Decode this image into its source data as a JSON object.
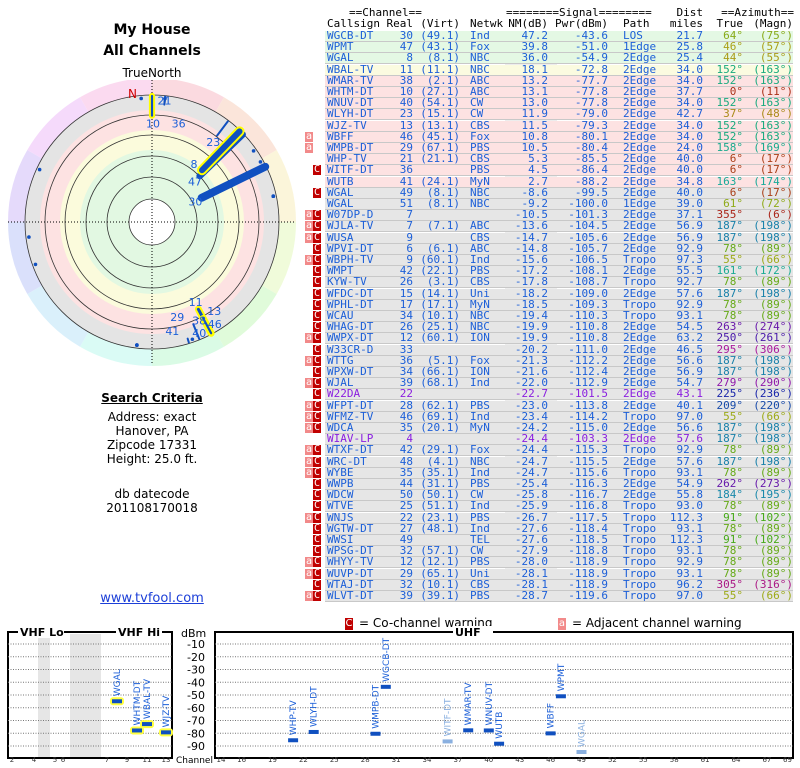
{
  "header": {
    "title1": "My House",
    "title2": "All Channels",
    "north_label": "TrueNorth",
    "north_marker": "N"
  },
  "search": {
    "heading": "Search Criteria",
    "address": "Address: exact",
    "city": "Hanover, PA",
    "zip": "Zipcode 17331",
    "height": "Height: 25.0 ft.",
    "db_label": "db datecode",
    "db_value": "201108170018",
    "link": "www.tvfool.com"
  },
  "table": {
    "group_headers": {
      "channel": "==Channel==",
      "signal": "========Signal========",
      "dist": "Dist",
      "azimuth": "==Azimuth=="
    },
    "columns": [
      "Callsign",
      "Real",
      "(Virt)",
      "Netwk",
      "NM(dB)",
      "Pwr(dBm)",
      "Path",
      "miles",
      "True",
      "(Magn)"
    ],
    "rows": [
      {
        "call": "WGCB-DT",
        "real": "30",
        "virt": "(49.1)",
        "net": "Ind",
        "nm": "47.2",
        "pwr": "-43.6",
        "path": "LOS",
        "dist": "21.7",
        "az": 64,
        "true": "64°",
        "magn": "(75°)",
        "flags": "",
        "band": "green"
      },
      {
        "call": "WPMT",
        "real": "47",
        "virt": "(43.1)",
        "net": "Fox",
        "nm": "39.8",
        "pwr": "-51.0",
        "path": "1Edge",
        "dist": "25.8",
        "az": 46,
        "true": "46°",
        "magn": "(57°)",
        "flags": "",
        "band": "green"
      },
      {
        "call": "WGAL",
        "real": "8",
        "virt": "(8.1)",
        "net": "NBC",
        "nm": "36.0",
        "pwr": "-54.9",
        "path": "2Edge",
        "dist": "25.4",
        "az": 44,
        "true": "44°",
        "magn": "(55°)",
        "flags": "",
        "band": "green"
      },
      {
        "call": "WBAL-TV",
        "real": "11",
        "virt": "(11.1)",
        "net": "NBC",
        "nm": "18.1",
        "pwr": "-72.8",
        "path": "2Edge",
        "dist": "34.0",
        "az": 152,
        "true": "152°",
        "magn": "(163°)",
        "flags": "",
        "band": "yellow"
      },
      {
        "call": "WMAR-TV",
        "real": "38",
        "virt": "(2.1)",
        "net": "ABC",
        "nm": "13.2",
        "pwr": "-77.7",
        "path": "2Edge",
        "dist": "34.0",
        "az": 152,
        "true": "152°",
        "magn": "(163°)",
        "flags": "",
        "band": "pink"
      },
      {
        "call": "WHTM-DT",
        "real": "10",
        "virt": "(27.1)",
        "net": "ABC",
        "nm": "13.1",
        "pwr": "-77.8",
        "path": "2Edge",
        "dist": "37.7",
        "az": 0,
        "true": "0°",
        "magn": "(11°)",
        "flags": "",
        "band": "pink"
      },
      {
        "call": "WNUV-DT",
        "real": "40",
        "virt": "(54.1)",
        "net": "CW",
        "nm": "13.0",
        "pwr": "-77.8",
        "path": "2Edge",
        "dist": "34.0",
        "az": 152,
        "true": "152°",
        "magn": "(163°)",
        "flags": "",
        "band": "pink"
      },
      {
        "call": "WLYH-DT",
        "real": "23",
        "virt": "(15.1)",
        "net": "CW",
        "nm": "11.9",
        "pwr": "-79.0",
        "path": "2Edge",
        "dist": "42.7",
        "az": 37,
        "true": "37°",
        "magn": "(48°)",
        "flags": "",
        "band": "pink"
      },
      {
        "call": "WJZ-TV",
        "real": "13",
        "virt": "(13.1)",
        "net": "CBS",
        "nm": "11.5",
        "pwr": "-79.3",
        "path": "2Edge",
        "dist": "34.0",
        "az": 152,
        "true": "152°",
        "magn": "(163°)",
        "flags": "",
        "band": "pink"
      },
      {
        "call": "WBFF",
        "real": "46",
        "virt": "(45.1)",
        "net": "Fox",
        "nm": "10.8",
        "pwr": "-80.1",
        "path": "2Edge",
        "dist": "34.0",
        "az": 152,
        "true": "152°",
        "magn": "(163°)",
        "flags": "a",
        "band": "pink"
      },
      {
        "call": "WMPB-DT",
        "real": "29",
        "virt": "(67.1)",
        "net": "PBS",
        "nm": "10.5",
        "pwr": "-80.4",
        "path": "2Edge",
        "dist": "24.0",
        "az": 158,
        "true": "158°",
        "magn": "(169°)",
        "flags": "a",
        "band": "pink"
      },
      {
        "call": "WHP-TV",
        "real": "21",
        "virt": "(21.1)",
        "net": "CBS",
        "nm": "5.3",
        "pwr": "-85.5",
        "path": "2Edge",
        "dist": "40.0",
        "az": 6,
        "true": "6°",
        "magn": "(17°)",
        "flags": "",
        "band": "pink"
      },
      {
        "call": "WITF-DT",
        "real": "36",
        "virt": "",
        "net": "PBS",
        "nm": "4.5",
        "pwr": "-86.4",
        "path": "2Edge",
        "dist": "40.0",
        "az": 6,
        "true": "6°",
        "magn": "(17°)",
        "flags": "C",
        "band": "pink"
      },
      {
        "call": "WUTB",
        "real": "41",
        "virt": "(24.1)",
        "net": "MyN",
        "nm": "2.7",
        "pwr": "-88.2",
        "path": "2Edge",
        "dist": "34.8",
        "az": 163,
        "true": "163°",
        "magn": "(174°)",
        "flags": "",
        "band": "pink"
      },
      {
        "call": "WGAL",
        "real": "49",
        "virt": "(8.1)",
        "net": "NBC",
        "nm": "-8.6",
        "pwr": "-99.5",
        "path": "2Edge",
        "dist": "40.0",
        "az": 6,
        "true": "6°",
        "magn": "(17°)",
        "flags": "C",
        "band": "gray"
      },
      {
        "call": "WGAL",
        "real": "51",
        "virt": "(8.1)",
        "net": "NBC",
        "nm": "-9.2",
        "pwr": "-100.0",
        "path": "1Edge",
        "dist": "39.0",
        "az": 61,
        "true": "61°",
        "magn": "(72°)",
        "flags": "",
        "band": "gray"
      },
      {
        "call": "W07DP-D",
        "real": "7",
        "virt": "",
        "net": "",
        "nm": "-10.5",
        "pwr": "-101.3",
        "path": "2Edge",
        "dist": "37.1",
        "az": 355,
        "true": "355°",
        "magn": "(6°)",
        "flags": "aC",
        "band": "gray"
      },
      {
        "call": "WJLA-TV",
        "real": "7",
        "virt": "(7.1)",
        "net": "ABC",
        "nm": "-13.6",
        "pwr": "-104.5",
        "path": "2Edge",
        "dist": "56.9",
        "az": 187,
        "true": "187°",
        "magn": "(198°)",
        "flags": "aC",
        "band": "gray"
      },
      {
        "call": "WUSA",
        "real": "9",
        "virt": "",
        "net": "CBS",
        "nm": "-14.7",
        "pwr": "-105.6",
        "path": "2Edge",
        "dist": "56.9",
        "az": 187,
        "true": "187°",
        "magn": "(198°)",
        "flags": "aC",
        "band": "gray"
      },
      {
        "call": "WPVI-DT",
        "real": "6",
        "virt": "(6.1)",
        "net": "ABC",
        "nm": "-14.8",
        "pwr": "-105.7",
        "path": "2Edge",
        "dist": "92.9",
        "az": 78,
        "true": "78°",
        "magn": "(89°)",
        "flags": "C",
        "band": "gray"
      },
      {
        "call": "WBPH-TV",
        "real": "9",
        "virt": "(60.1)",
        "net": "Ind",
        "nm": "-15.6",
        "pwr": "-106.5",
        "path": "Tropo",
        "dist": "97.3",
        "az": 55,
        "true": "55°",
        "magn": "(66°)",
        "flags": "aC",
        "band": "gray"
      },
      {
        "call": "WMPT",
        "real": "42",
        "virt": "(22.1)",
        "net": "PBS",
        "nm": "-17.2",
        "pwr": "-108.1",
        "path": "2Edge",
        "dist": "55.5",
        "az": 161,
        "true": "161°",
        "magn": "(172°)",
        "flags": "C",
        "band": "gray"
      },
      {
        "call": "KYW-TV",
        "real": "26",
        "virt": "(3.1)",
        "net": "CBS",
        "nm": "-17.8",
        "pwr": "-108.7",
        "path": "Tropo",
        "dist": "92.7",
        "az": 78,
        "true": "78°",
        "magn": "(89°)",
        "flags": "C",
        "band": "gray"
      },
      {
        "call": "WFDC-DT",
        "real": "15",
        "virt": "(14.1)",
        "net": "Uni",
        "nm": "-18.2",
        "pwr": "-109.0",
        "path": "2Edge",
        "dist": "57.6",
        "az": 187,
        "true": "187°",
        "magn": "(198°)",
        "flags": "C",
        "band": "gray"
      },
      {
        "call": "WPHL-DT",
        "real": "17",
        "virt": "(17.1)",
        "net": "MyN",
        "nm": "-18.5",
        "pwr": "-109.3",
        "path": "Tropo",
        "dist": "92.9",
        "az": 78,
        "true": "78°",
        "magn": "(89°)",
        "flags": "C",
        "band": "gray"
      },
      {
        "call": "WCAU",
        "real": "34",
        "virt": "(10.1)",
        "net": "NBC",
        "nm": "-19.4",
        "pwr": "-110.3",
        "path": "Tropo",
        "dist": "93.1",
        "az": 78,
        "true": "78°",
        "magn": "(89°)",
        "flags": "C",
        "band": "gray"
      },
      {
        "call": "WHAG-DT",
        "real": "26",
        "virt": "(25.1)",
        "net": "NBC",
        "nm": "-19.9",
        "pwr": "-110.8",
        "path": "2Edge",
        "dist": "54.5",
        "az": 263,
        "true": "263°",
        "magn": "(274°)",
        "flags": "C",
        "band": "gray"
      },
      {
        "call": "WWPX-DT",
        "real": "12",
        "virt": "(60.1)",
        "net": "ION",
        "nm": "-19.9",
        "pwr": "-110.8",
        "path": "2Edge",
        "dist": "63.2",
        "az": 250,
        "true": "250°",
        "magn": "(261°)",
        "flags": "aC",
        "band": "gray"
      },
      {
        "call": "W33CR-D",
        "real": "33",
        "virt": "",
        "net": "",
        "nm": "-20.2",
        "pwr": "-111.0",
        "path": "2Edge",
        "dist": "46.5",
        "az": 295,
        "true": "295°",
        "magn": "(306°)",
        "flags": "C",
        "band": "gray"
      },
      {
        "call": "WTTG",
        "real": "36",
        "virt": "(5.1)",
        "net": "Fox",
        "nm": "-21.3",
        "pwr": "-112.2",
        "path": "2Edge",
        "dist": "56.6",
        "az": 187,
        "true": "187°",
        "magn": "(198°)",
        "flags": "aC",
        "band": "gray"
      },
      {
        "call": "WPXW-DT",
        "real": "34",
        "virt": "(66.1)",
        "net": "ION",
        "nm": "-21.6",
        "pwr": "-112.4",
        "path": "2Edge",
        "dist": "56.9",
        "az": 187,
        "true": "187°",
        "magn": "(198°)",
        "flags": "C",
        "band": "gray"
      },
      {
        "call": "WJAL",
        "real": "39",
        "virt": "(68.1)",
        "net": "Ind",
        "nm": "-22.0",
        "pwr": "-112.9",
        "path": "2Edge",
        "dist": "54.7",
        "az": 279,
        "true": "279°",
        "magn": "(290°)",
        "flags": "aC",
        "band": "gray"
      },
      {
        "call": "W22DA",
        "real": "22",
        "virt": "",
        "net": "",
        "nm": "-22.7",
        "pwr": "-101.5",
        "path": "2Edge",
        "dist": "43.1",
        "az": 225,
        "true": "225°",
        "magn": "(236°)",
        "flags": "C",
        "band": "gray",
        "purple": true
      },
      {
        "call": "WFPT-DT",
        "real": "28",
        "virt": "(62.1)",
        "net": "PBS",
        "nm": "-23.0",
        "pwr": "-113.8",
        "path": "2Edge",
        "dist": "40.1",
        "az": 209,
        "true": "209°",
        "magn": "(220°)",
        "flags": "aC",
        "band": "gray"
      },
      {
        "call": "WFMZ-TV",
        "real": "46",
        "virt": "(69.1)",
        "net": "Ind",
        "nm": "-23.4",
        "pwr": "-114.2",
        "path": "Tropo",
        "dist": "97.0",
        "az": 55,
        "true": "55°",
        "magn": "(66°)",
        "flags": "aC",
        "band": "gray"
      },
      {
        "call": "WDCA",
        "real": "35",
        "virt": "(20.1)",
        "net": "MyN",
        "nm": "-24.2",
        "pwr": "-115.0",
        "path": "2Edge",
        "dist": "56.6",
        "az": 187,
        "true": "187°",
        "magn": "(198°)",
        "flags": "aC",
        "band": "gray"
      },
      {
        "call": "WIAV-LP",
        "real": "4",
        "virt": "",
        "net": "",
        "nm": "-24.4",
        "pwr": "-103.3",
        "path": "2Edge",
        "dist": "57.6",
        "az": 187,
        "true": "187°",
        "magn": "(198°)",
        "flags": "",
        "band": "gray",
        "purple": true
      },
      {
        "call": "WTXF-DT",
        "real": "42",
        "virt": "(29.1)",
        "net": "Fox",
        "nm": "-24.4",
        "pwr": "-115.3",
        "path": "Tropo",
        "dist": "92.9",
        "az": 78,
        "true": "78°",
        "magn": "(89°)",
        "flags": "aC",
        "band": "gray"
      },
      {
        "call": "WRC-DT",
        "real": "48",
        "virt": "(4.1)",
        "net": "NBC",
        "nm": "-24.7",
        "pwr": "-115.5",
        "path": "2Edge",
        "dist": "57.6",
        "az": 187,
        "true": "187°",
        "magn": "(198°)",
        "flags": "aC",
        "band": "gray"
      },
      {
        "call": "WYBE",
        "real": "35",
        "virt": "(35.1)",
        "net": "Ind",
        "nm": "-24.7",
        "pwr": "-115.6",
        "path": "Tropo",
        "dist": "93.1",
        "az": 78,
        "true": "78°",
        "magn": "(89°)",
        "flags": "aC",
        "band": "gray"
      },
      {
        "call": "WWPB",
        "real": "44",
        "virt": "(31.1)",
        "net": "PBS",
        "nm": "-25.4",
        "pwr": "-116.3",
        "path": "2Edge",
        "dist": "54.9",
        "az": 262,
        "true": "262°",
        "magn": "(273°)",
        "flags": "C",
        "band": "gray"
      },
      {
        "call": "WDCW",
        "real": "50",
        "virt": "(50.1)",
        "net": "CW",
        "nm": "-25.8",
        "pwr": "-116.7",
        "path": "2Edge",
        "dist": "55.8",
        "az": 184,
        "true": "184°",
        "magn": "(195°)",
        "flags": "C",
        "band": "gray"
      },
      {
        "call": "WTVE",
        "real": "25",
        "virt": "(51.1)",
        "net": "Ind",
        "nm": "-25.9",
        "pwr": "-116.8",
        "path": "Tropo",
        "dist": "93.0",
        "az": 78,
        "true": "78°",
        "magn": "(89°)",
        "flags": "C",
        "band": "gray"
      },
      {
        "call": "WNJS",
        "real": "22",
        "virt": "(23.1)",
        "net": "PBS",
        "nm": "-26.7",
        "pwr": "-117.5",
        "path": "Tropo",
        "dist": "112.3",
        "az": 91,
        "true": "91°",
        "magn": "(102°)",
        "flags": "aC",
        "band": "gray"
      },
      {
        "call": "WGTW-DT",
        "real": "27",
        "virt": "(48.1)",
        "net": "Ind",
        "nm": "-27.6",
        "pwr": "-118.4",
        "path": "Tropo",
        "dist": "93.1",
        "az": 78,
        "true": "78°",
        "magn": "(89°)",
        "flags": "C",
        "band": "gray"
      },
      {
        "call": "WWSI",
        "real": "49",
        "virt": "",
        "net": "TEL",
        "nm": "-27.6",
        "pwr": "-118.5",
        "path": "Tropo",
        "dist": "112.3",
        "az": 91,
        "true": "91°",
        "magn": "(102°)",
        "flags": "C",
        "band": "gray"
      },
      {
        "call": "WPSG-DT",
        "real": "32",
        "virt": "(57.1)",
        "net": "CW",
        "nm": "-27.9",
        "pwr": "-118.8",
        "path": "Tropo",
        "dist": "93.1",
        "az": 78,
        "true": "78°",
        "magn": "(89°)",
        "flags": "C",
        "band": "gray"
      },
      {
        "call": "WHYY-TV",
        "real": "12",
        "virt": "(12.1)",
        "net": "PBS",
        "nm": "-28.0",
        "pwr": "-118.9",
        "path": "Tropo",
        "dist": "92.9",
        "az": 78,
        "true": "78°",
        "magn": "(89°)",
        "flags": "aC",
        "band": "gray"
      },
      {
        "call": "WUVP-DT",
        "real": "29",
        "virt": "(65.1)",
        "net": "Uni",
        "nm": "-28.1",
        "pwr": "-118.9",
        "path": "Tropo",
        "dist": "93.1",
        "az": 78,
        "true": "78°",
        "magn": "(89°)",
        "flags": "aC",
        "band": "gray"
      },
      {
        "call": "WTAJ-DT",
        "real": "32",
        "virt": "(10.1)",
        "net": "CBS",
        "nm": "-28.1",
        "pwr": "-118.9",
        "path": "Tropo",
        "dist": "96.2",
        "az": 305,
        "true": "305°",
        "magn": "(316°)",
        "flags": "C",
        "band": "gray"
      },
      {
        "call": "WLVT-DT",
        "real": "39",
        "virt": "(39.1)",
        "net": "PBS",
        "nm": "-28.7",
        "pwr": "-119.6",
        "path": "Tropo",
        "dist": "97.0",
        "az": 55,
        "true": "55°",
        "magn": "(66°)",
        "flags": "aC",
        "band": "gray"
      }
    ]
  },
  "legend": {
    "co_symbol": "C",
    "co_label": "= Co-channel warning",
    "adj_symbol": "a",
    "adj_label": "= Adjacent channel warning"
  },
  "chart_data": {
    "type": "bar",
    "title_vhf_lo": "VHF Lo",
    "title_vhf_hi": "VHF Hi",
    "title_uhf": "UHF",
    "ylabel": "dBm",
    "xlabel": "Channel",
    "yticks": [
      "-10",
      "-20",
      "-30",
      "-40",
      "-50",
      "-60",
      "-70",
      "-80",
      "-90"
    ],
    "ylim": [
      -95,
      -5
    ],
    "vhf_ticks": [
      "2",
      "4",
      "5",
      "6",
      "7",
      "9",
      "11",
      "13"
    ],
    "uhf_ticks": [
      "14",
      "16",
      "19",
      "22",
      "25",
      "28",
      "31",
      "34",
      "37",
      "40",
      "43",
      "46",
      "49",
      "52",
      "55",
      "58",
      "61",
      "64",
      "67",
      "69"
    ],
    "series": [
      {
        "name": "WGAL",
        "channel": 8,
        "dbm": -54.9,
        "highlight": true
      },
      {
        "name": "WHTM-DT",
        "channel": 10,
        "dbm": -77.8,
        "highlight": true
      },
      {
        "name": "WBAL-TV",
        "channel": 11,
        "dbm": -72.8,
        "highlight": true
      },
      {
        "name": "WJZ-TV",
        "channel": 13,
        "dbm": -79.3,
        "highlight": true
      },
      {
        "name": "WHP-TV",
        "channel": 21,
        "dbm": -85.5
      },
      {
        "name": "WLYH-DT",
        "channel": 23,
        "dbm": -79.0
      },
      {
        "name": "WMPB-DT",
        "channel": 29,
        "dbm": -80.4
      },
      {
        "name": "WGCB-DT",
        "channel": 30,
        "dbm": -43.6
      },
      {
        "name": "WITF-DT",
        "channel": 36,
        "dbm": -86.4,
        "faint": true
      },
      {
        "name": "WMAR-TV",
        "channel": 38,
        "dbm": -77.7
      },
      {
        "name": "WNUV-DT",
        "channel": 40,
        "dbm": -77.8
      },
      {
        "name": "WUTB",
        "channel": 41,
        "dbm": -88.2
      },
      {
        "name": "WBFF",
        "channel": 46,
        "dbm": -80.1
      },
      {
        "name": "WPMT",
        "channel": 47,
        "dbm": -51.0
      },
      {
        "name": "WGAL",
        "channel": 49,
        "dbm": -99.5,
        "faint": true
      }
    ]
  },
  "colors": {
    "text_blue": "#1c5fd8",
    "purple": "#8a1ee0",
    "co_channel": "#c00000",
    "adjacent": "#f28a8a",
    "green_row": "#e4f8e4",
    "yellow_row": "#fbfbe0",
    "pink_row": "#fde2e2",
    "gray_row": "#e6e6e6"
  }
}
